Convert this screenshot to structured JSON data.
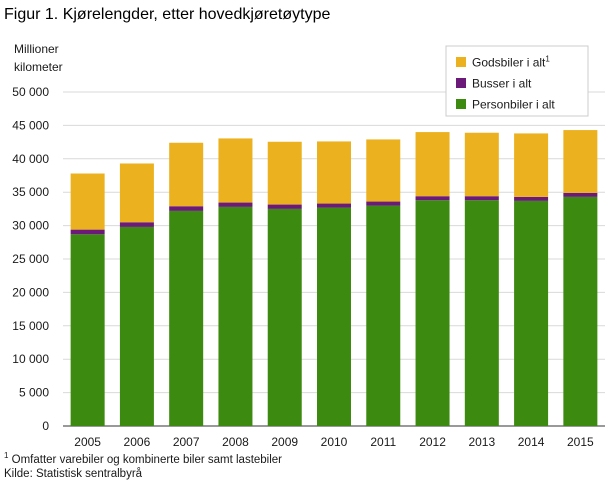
{
  "title": "Figur 1. Kjørelengder, etter hovedkjøretøytype",
  "y_unit": [
    "Millioner",
    "kilometer"
  ],
  "footnote_mark": "1",
  "footnote_text": "Omfatter varebiler og kombinerte biler samt lastebiler",
  "source": "Kilde: Statistisk sentralbyrå",
  "chart_data": {
    "type": "bar",
    "stacked": true,
    "categories": [
      "2005",
      "2006",
      "2007",
      "2008",
      "2009",
      "2010",
      "2011",
      "2012",
      "2013",
      "2014",
      "2015"
    ],
    "series": [
      {
        "name": "Personbiler i alt",
        "color": "#3c8a0f",
        "values": [
          28700,
          29800,
          32200,
          32800,
          32500,
          32700,
          33000,
          33800,
          33800,
          33700,
          34300
        ]
      },
      {
        "name": "Busser i alt",
        "color": "#6b1a7a",
        "values": [
          700,
          700,
          700,
          650,
          650,
          600,
          600,
          600,
          600,
          600,
          600
        ]
      },
      {
        "name": "Godsbiler i alt",
        "sup": "1",
        "color": "#ecb11f",
        "values": [
          8400,
          8800,
          9500,
          9600,
          9400,
          9300,
          9300,
          9600,
          9500,
          9500,
          9400
        ]
      }
    ],
    "legend_order": [
      "Godsbiler i alt",
      "Busser i alt",
      "Personbiler i alt"
    ],
    "yticks": [
      0,
      5000,
      10000,
      15000,
      20000,
      25000,
      30000,
      35000,
      40000,
      45000,
      50000
    ],
    "ytick_labels": [
      "0",
      "5 000",
      "10 000",
      "15 000",
      "20 000",
      "25 000",
      "30 000",
      "35 000",
      "40 000",
      "45 000",
      "50 000"
    ],
    "ylim": [
      0,
      50000
    ],
    "grid": true,
    "legend_position": "top-right"
  }
}
